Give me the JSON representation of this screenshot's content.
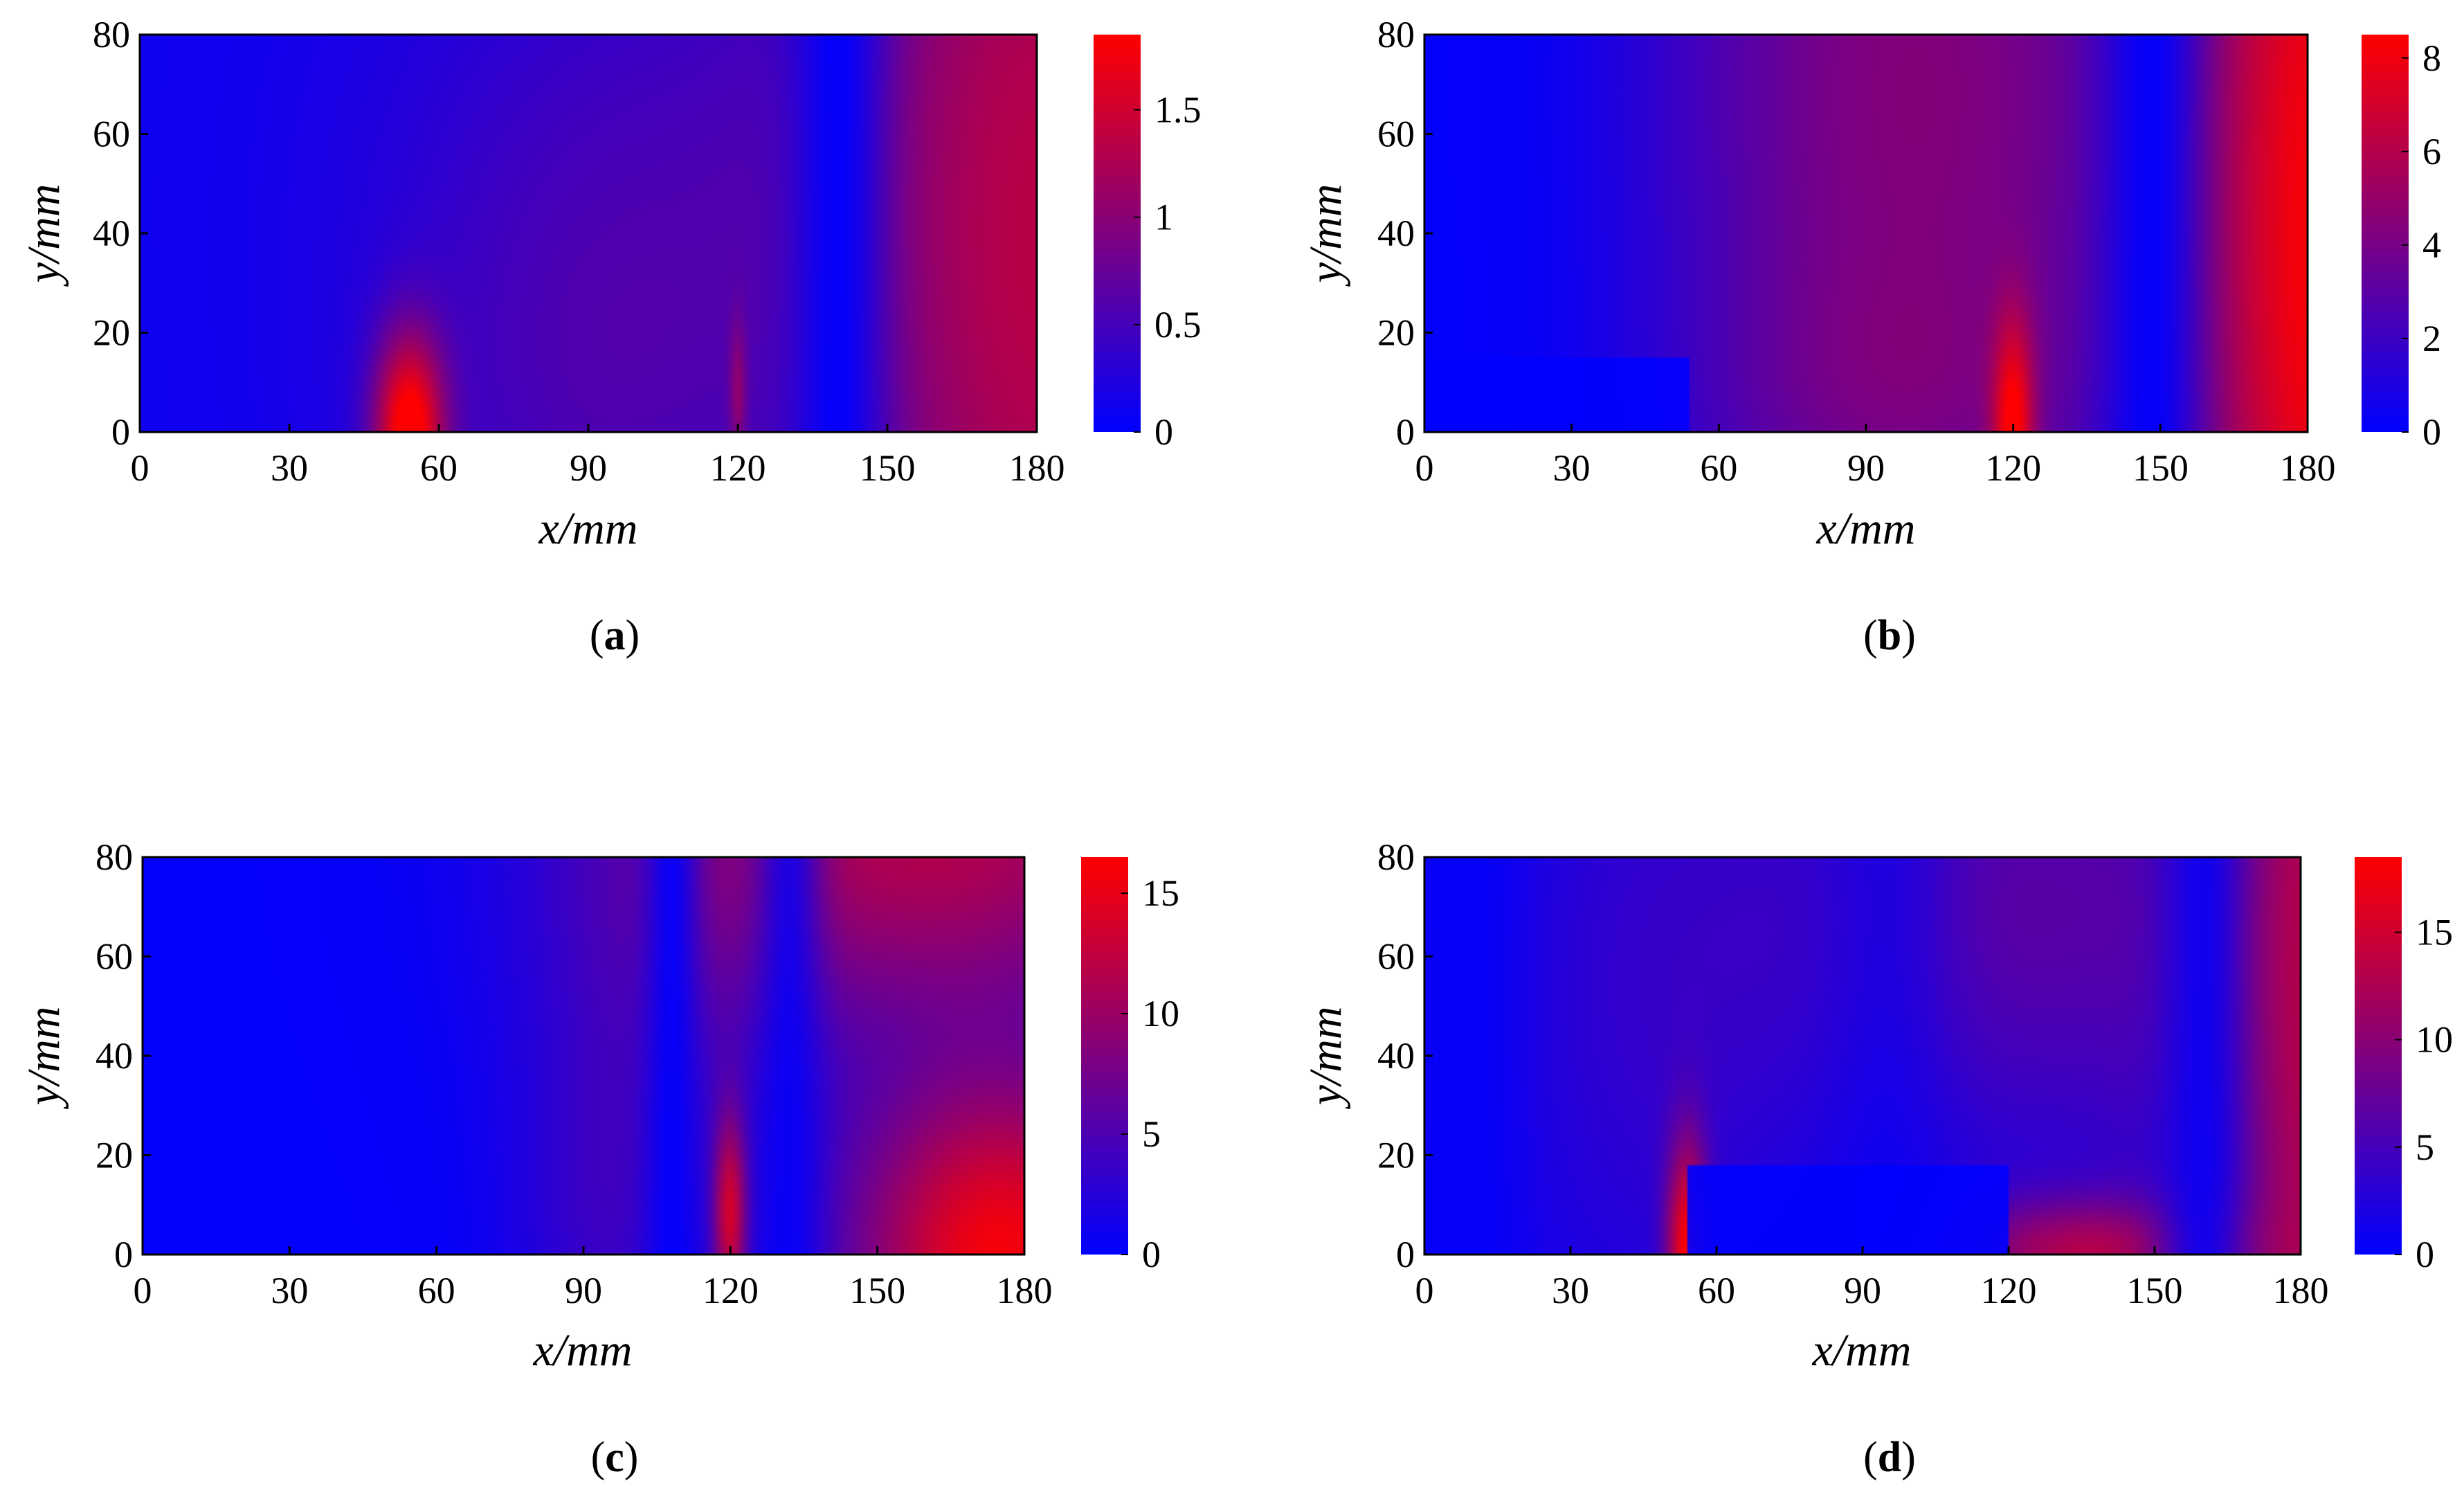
{
  "colors": {
    "low": "#0000ff",
    "high": "#ff0000"
  },
  "panels": [
    {
      "label": "(a)",
      "label_letter": "a",
      "xlabel": "x/mm",
      "ylabel": "y/mm"
    },
    {
      "label": "(b)",
      "label_letter": "b",
      "xlabel": "x/mm",
      "ylabel": "y/mm"
    },
    {
      "label": "(c)",
      "label_letter": "c",
      "xlabel": "x/mm",
      "ylabel": "y/mm"
    },
    {
      "label": "(d)",
      "label_letter": "d",
      "xlabel": "x/mm",
      "ylabel": "y/mm"
    }
  ],
  "chart_data": [
    {
      "type": "heatmap",
      "panel": "a",
      "title": "",
      "xlabel": "x/mm",
      "ylabel": "y/mm",
      "xlim": [
        0,
        180
      ],
      "ylim": [
        0,
        80
      ],
      "x_ticks": [
        0,
        30,
        60,
        90,
        120,
        150,
        180
      ],
      "y_ticks": [
        0,
        20,
        40,
        60,
        80
      ],
      "colorbar": {
        "min": 0,
        "max": 1.85,
        "ticks": [
          0,
          0.5,
          1,
          1.5
        ],
        "tick_labels": [
          "0",
          "0.5",
          "1",
          "1.5"
        ],
        "colormap": [
          "#0000ff",
          "#ff0000"
        ]
      },
      "field": {
        "base": 0.1,
        "hotspots": [
          {
            "x": 54,
            "y": 0,
            "sx": 5,
            "sy": 14,
            "v": 1.75
          },
          {
            "x": 120,
            "y": 8,
            "sx": 1.2,
            "sy": 10,
            "v": 0.5
          },
          {
            "x": 182,
            "y": 35,
            "sx": 30,
            "sy": 120,
            "v": 1.2
          },
          {
            "x": 90,
            "y": 0,
            "sx": 30,
            "sy": 45,
            "v": 0.35
          },
          {
            "x": 105,
            "y": 60,
            "sx": 40,
            "sy": 45,
            "v": 0.25
          }
        ],
        "cold_bands": [
          {
            "x": 140,
            "sx": 7,
            "f": 0.95
          }
        ]
      }
    },
    {
      "type": "heatmap",
      "panel": "b",
      "title": "",
      "xlabel": "x/mm",
      "ylabel": "y/mm",
      "xlim": [
        0,
        180
      ],
      "ylim": [
        0,
        80
      ],
      "x_ticks": [
        0,
        30,
        60,
        90,
        120,
        150,
        180
      ],
      "y_ticks": [
        0,
        20,
        40,
        60,
        80
      ],
      "colorbar": {
        "min": 0,
        "max": 8.5,
        "ticks": [
          0,
          2,
          4,
          6,
          8
        ],
        "tick_labels": [
          "0",
          "2",
          "4",
          "6",
          "8"
        ],
        "colormap": [
          "#0000ff",
          "#ff0000"
        ]
      },
      "field": {
        "base": 0.2,
        "hotspots": [
          {
            "x": 100,
            "y": 70,
            "sx": 38,
            "sy": 80,
            "v": 4.2
          },
          {
            "x": 95,
            "y": 5,
            "sx": 30,
            "sy": 20,
            "v": 1.0
          },
          {
            "x": 120,
            "y": 0,
            "sx": 3,
            "sy": 16,
            "v": 5.5
          },
          {
            "x": 186,
            "y": 35,
            "sx": 22,
            "sy": 120,
            "v": 8.0
          }
        ],
        "cold_bands": [
          {
            "x": 148,
            "sx": 8,
            "f": 0.95
          },
          {
            "x": 8,
            "sx": 20,
            "f": 0.7
          }
        ],
        "rect_zero": {
          "x0": 0,
          "x1": 54,
          "y0": 0,
          "y1": 15
        }
      }
    },
    {
      "type": "heatmap",
      "panel": "c",
      "title": "",
      "xlabel": "x/mm",
      "ylabel": "y/mm",
      "xlim": [
        0,
        180
      ],
      "ylim": [
        0,
        80
      ],
      "x_ticks": [
        0,
        30,
        60,
        90,
        120,
        150,
        180
      ],
      "y_ticks": [
        0,
        20,
        40,
        60,
        80
      ],
      "colorbar": {
        "min": 0,
        "max": 16.5,
        "ticks": [
          0,
          5,
          10,
          15
        ],
        "tick_labels": [
          "0",
          "5",
          "10",
          "15"
        ],
        "colormap": [
          "#0000ff",
          "#ff0000"
        ]
      },
      "field": {
        "base": 0.2,
        "hotspots": [
          {
            "x": 120,
            "y": 8,
            "sx": 2.5,
            "sy": 14,
            "v": 12
          },
          {
            "x": 175,
            "y": 0,
            "sx": 22,
            "sy": 25,
            "v": 15.5
          },
          {
            "x": 165,
            "y": 85,
            "sx": 40,
            "sy": 28,
            "v": 11
          },
          {
            "x": 95,
            "y": 5,
            "sx": 14,
            "sy": 30,
            "v": 3
          },
          {
            "x": 110,
            "y": 70,
            "sx": 25,
            "sy": 40,
            "v": 3
          }
        ],
        "cold_bands": [
          {
            "x": 108,
            "sx": 4,
            "f": 0.9
          },
          {
            "x": 132,
            "sx": 5,
            "f": 0.8
          }
        ]
      }
    },
    {
      "type": "heatmap",
      "panel": "d",
      "title": "",
      "xlabel": "x/mm",
      "ylabel": "y/mm",
      "xlim": [
        0,
        180
      ],
      "ylim": [
        0,
        80
      ],
      "x_ticks": [
        0,
        30,
        60,
        90,
        120,
        150,
        180
      ],
      "y_ticks": [
        0,
        20,
        40,
        60,
        80
      ],
      "colorbar": {
        "min": 0,
        "max": 18.5,
        "ticks": [
          0,
          5,
          10,
          15
        ],
        "tick_labels": [
          "0",
          "5",
          "10",
          "15"
        ],
        "colormap": [
          "#0000ff",
          "#ff0000"
        ]
      },
      "field": {
        "base": 0.3,
        "hotspots": [
          {
            "x": 54,
            "y": 0,
            "sx": 3,
            "sy": 16,
            "v": 16
          },
          {
            "x": 135,
            "y": 0,
            "sx": 20,
            "sy": 8,
            "v": 11
          },
          {
            "x": 185,
            "y": 40,
            "sx": 20,
            "sy": 120,
            "v": 12
          },
          {
            "x": 120,
            "y": 70,
            "sx": 35,
            "sy": 40,
            "v": 6
          },
          {
            "x": 45,
            "y": 50,
            "sx": 25,
            "sy": 60,
            "v": 3
          }
        ],
        "cold_bands": [
          {
            "x": 160,
            "sx": 7,
            "f": 0.85
          },
          {
            "x": 10,
            "sx": 8,
            "f": 0.7
          },
          {
            "x": 95,
            "sx": 10,
            "f": 0.55
          }
        ],
        "rect_zero": {
          "x0": 54,
          "x1": 120,
          "y0": 0,
          "y1": 18
        }
      }
    }
  ]
}
